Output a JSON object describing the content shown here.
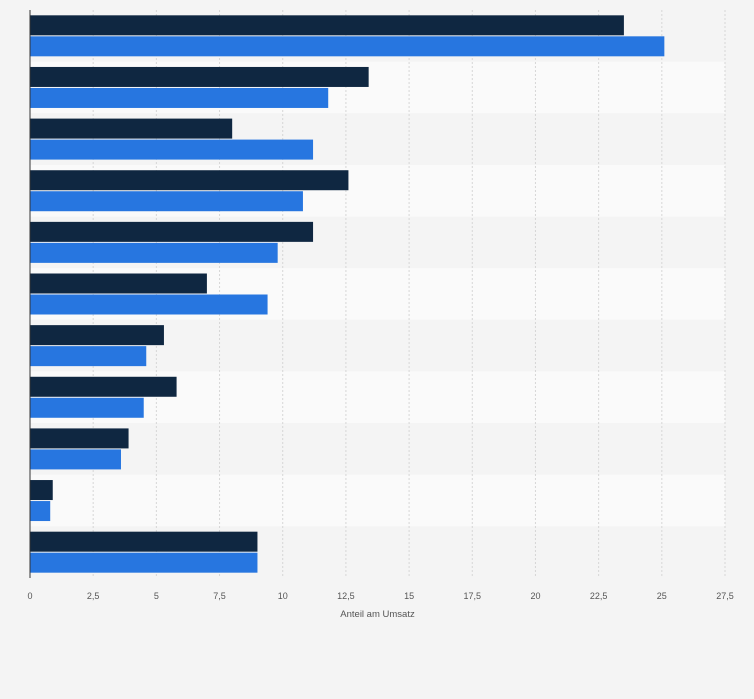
{
  "chart_data": {
    "type": "bar",
    "orientation": "horizontal",
    "categories": [
      "",
      "",
      "",
      "",
      "",
      "",
      "",
      "",
      "",
      "",
      ""
    ],
    "series": [
      {
        "color": "#0f2741",
        "values": [
          23.5,
          13.4,
          8.0,
          12.6,
          11.2,
          7.0,
          5.3,
          5.8,
          3.9,
          0.9,
          9.0
        ]
      },
      {
        "color": "#2776e0",
        "values": [
          25.1,
          11.8,
          11.2,
          10.8,
          9.8,
          9.4,
          4.6,
          4.5,
          3.6,
          0.8,
          9.0
        ]
      }
    ],
    "xlabel": "Anteil am Umsatz",
    "xlim": [
      0,
      27.5
    ],
    "xticks": [
      "0",
      "2,5",
      "5",
      "7,5",
      "10",
      "12,5",
      "15",
      "17,5",
      "20",
      "22,5",
      "25",
      "27,5"
    ],
    "grid": true,
    "legend": "none"
  }
}
